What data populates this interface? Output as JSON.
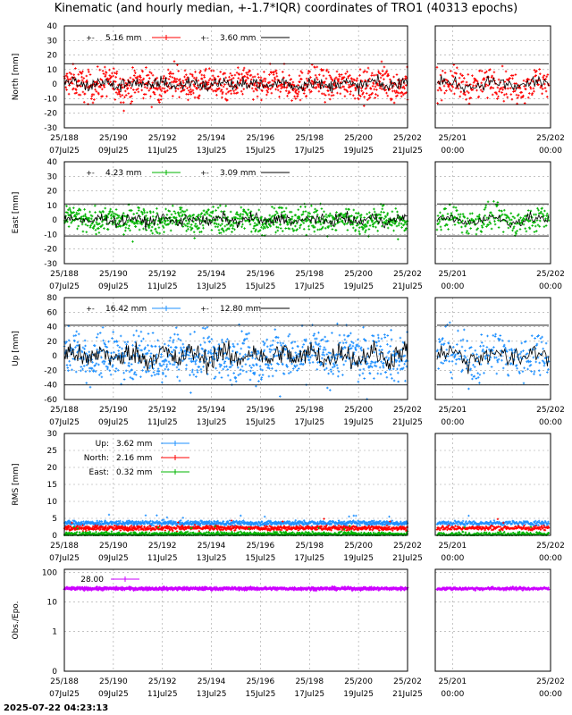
{
  "title": "Kinematic (and hourly median, +-1.7*IQR) coordinates of TRO1 (40313 epochs)",
  "timestamp": "2025-07-22 04:23:13",
  "x_main": {
    "doy": [
      "25/188",
      "25/190",
      "25/192",
      "25/194",
      "25/196",
      "25/198",
      "25/200",
      "25/202"
    ],
    "date": [
      "07Jul25",
      "09Jul25",
      "11Jul25",
      "13Jul25",
      "15Jul25",
      "17Jul25",
      "19Jul25",
      "21Jul25"
    ]
  },
  "x_zoom": {
    "doy": [
      "25/201",
      "25/202"
    ],
    "date": [
      "00:00",
      "00:00"
    ]
  },
  "colors": {
    "north": "#ff0000",
    "east": "#00b400",
    "up": "#1e90ff",
    "obs": "#cc00ff",
    "median": "#000000",
    "grid": "#a0a0a0"
  },
  "chart_data": [
    {
      "type": "scatter",
      "name": "North",
      "ylabel": "North [mm]",
      "ylim": [
        -30,
        40
      ],
      "yticks": [
        "40",
        "30",
        "20",
        "10",
        "0",
        "-10",
        "-20",
        "-30"
      ],
      "legend": [
        {
          "label": "5.16 mm",
          "color": "#ff0000"
        },
        {
          "label": "3.60 mm",
          "color": "#000000"
        }
      ],
      "bounds": [
        14,
        -14
      ],
      "center": 0,
      "spread": 5.2,
      "median_spread": 3.6
    },
    {
      "type": "scatter",
      "name": "East",
      "ylabel": "East [mm]",
      "ylim": [
        -30,
        40
      ],
      "yticks": [
        "40",
        "30",
        "20",
        "10",
        "0",
        "-10",
        "-20",
        "-30"
      ],
      "legend": [
        {
          "label": "4.23 mm",
          "color": "#00b400"
        },
        {
          "label": "3.09 mm",
          "color": "#000000"
        }
      ],
      "bounds": [
        11,
        -11
      ],
      "center": 0,
      "spread": 4.2,
      "median_spread": 3.1
    },
    {
      "type": "scatter",
      "name": "Up",
      "ylabel": "Up [mm]",
      "ylim": [
        -60,
        80
      ],
      "yticks": [
        "80",
        "60",
        "40",
        "20",
        "0",
        "-20",
        "-40",
        "-60"
      ],
      "legend": [
        {
          "label": "16.42 mm",
          "color": "#1e90ff"
        },
        {
          "label": "12.80 mm",
          "color": "#000000"
        }
      ],
      "bounds": [
        42,
        -40
      ],
      "center": 0,
      "spread": 16.4,
      "median_spread": 12.8
    },
    {
      "type": "scatter",
      "name": "RMS",
      "ylabel": "RMS [mm]",
      "ylim": [
        0,
        30
      ],
      "yticks": [
        "30",
        "25",
        "20",
        "15",
        "10",
        "5",
        "0"
      ],
      "legend": [
        {
          "label": "Up:",
          "value": "3.62 mm",
          "color": "#1e90ff"
        },
        {
          "label": "North:",
          "value": "2.16 mm",
          "color": "#ff0000"
        },
        {
          "label": "East:",
          "value": "0.32 mm",
          "color": "#00b400"
        }
      ],
      "series": [
        {
          "name": "Up",
          "value": 3.62
        },
        {
          "name": "North",
          "value": 2.16
        },
        {
          "name": "East",
          "value": 0.32
        }
      ]
    },
    {
      "type": "scatter",
      "name": "Obs./Epo.",
      "ylabel": "Obs./Epo.",
      "yscale": "log",
      "yticks": [
        "100",
        "10",
        "1",
        "0"
      ],
      "legend": [
        {
          "label": "28.00",
          "color": "#cc00ff"
        }
      ],
      "center": 28
    }
  ]
}
